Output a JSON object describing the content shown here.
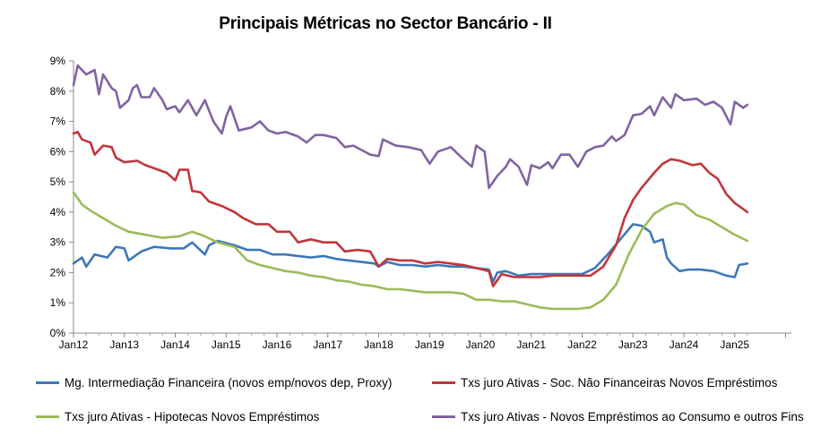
{
  "chart_data": {
    "type": "line",
    "title": "Principais Métricas no Sector Bancário  - II",
    "xlabel": "",
    "ylabel": "",
    "x_tick_labels": [
      "Jan12",
      "Jan13",
      "Jan14",
      "Jan15",
      "Jan16",
      "Jan17",
      "Jan18",
      "Jan19",
      "Jan20",
      "Jan21",
      "Jan22",
      "Jan23",
      "Jan24",
      "Jan25"
    ],
    "y_tick_labels": [
      "0%",
      "1%",
      "2%",
      "3%",
      "4%",
      "5%",
      "6%",
      "7%",
      "8%",
      "9%"
    ],
    "ylim": [
      0,
      9
    ],
    "xlim": [
      "2012-01",
      "2025-04"
    ],
    "grid": false,
    "legend_position": "bottom",
    "series": [
      {
        "name": "Mg. Intermediação Financeira (novos emp/novos dep, Proxy)",
        "color": "#3c78b9",
        "points": [
          [
            "2012-01",
            2.3
          ],
          [
            "2012-03",
            2.5
          ],
          [
            "2012-04",
            2.2
          ],
          [
            "2012-06",
            2.6
          ],
          [
            "2012-09",
            2.5
          ],
          [
            "2012-11",
            2.85
          ],
          [
            "2013-01",
            2.8
          ],
          [
            "2013-02",
            2.4
          ],
          [
            "2013-05",
            2.7
          ],
          [
            "2013-08",
            2.85
          ],
          [
            "2013-12",
            2.8
          ],
          [
            "2014-03",
            2.8
          ],
          [
            "2014-05",
            3.0
          ],
          [
            "2014-08",
            2.6
          ],
          [
            "2014-09",
            2.9
          ],
          [
            "2014-11",
            3.05
          ],
          [
            "2015-03",
            2.9
          ],
          [
            "2015-06",
            2.75
          ],
          [
            "2015-09",
            2.75
          ],
          [
            "2015-12",
            2.6
          ],
          [
            "2016-03",
            2.6
          ],
          [
            "2016-06",
            2.55
          ],
          [
            "2016-09",
            2.5
          ],
          [
            "2016-12",
            2.55
          ],
          [
            "2017-03",
            2.45
          ],
          [
            "2017-06",
            2.4
          ],
          [
            "2017-09",
            2.35
          ],
          [
            "2017-12",
            2.3
          ],
          [
            "2018-01",
            2.2
          ],
          [
            "2018-03",
            2.35
          ],
          [
            "2018-06",
            2.25
          ],
          [
            "2018-09",
            2.25
          ],
          [
            "2018-12",
            2.2
          ],
          [
            "2019-03",
            2.25
          ],
          [
            "2019-06",
            2.2
          ],
          [
            "2019-09",
            2.2
          ],
          [
            "2019-12",
            2.15
          ],
          [
            "2020-03",
            2.1
          ],
          [
            "2020-04",
            1.7
          ],
          [
            "2020-05",
            2.0
          ],
          [
            "2020-07",
            2.05
          ],
          [
            "2020-10",
            1.9
          ],
          [
            "2021-01",
            1.95
          ],
          [
            "2021-04",
            1.95
          ],
          [
            "2021-07",
            1.95
          ],
          [
            "2021-10",
            1.95
          ],
          [
            "2022-01",
            1.95
          ],
          [
            "2022-04",
            2.15
          ],
          [
            "2022-07",
            2.6
          ],
          [
            "2022-10",
            3.1
          ],
          [
            "2023-01",
            3.6
          ],
          [
            "2023-03",
            3.55
          ],
          [
            "2023-05",
            3.35
          ],
          [
            "2023-06",
            3.0
          ],
          [
            "2023-08",
            3.1
          ],
          [
            "2023-09",
            2.5
          ],
          [
            "2023-10",
            2.3
          ],
          [
            "2023-12",
            2.05
          ],
          [
            "2024-02",
            2.1
          ],
          [
            "2024-05",
            2.1
          ],
          [
            "2024-08",
            2.05
          ],
          [
            "2024-11",
            1.9
          ],
          [
            "2025-01",
            1.85
          ],
          [
            "2025-02",
            2.25
          ],
          [
            "2025-04",
            2.3
          ]
        ]
      },
      {
        "name": "Txs juro Ativas - Soc. Não Financeiras Novos Empréstimos",
        "color": "#c0363b",
        "points": [
          [
            "2012-01",
            6.6
          ],
          [
            "2012-02",
            6.65
          ],
          [
            "2012-03",
            6.4
          ],
          [
            "2012-05",
            6.3
          ],
          [
            "2012-06",
            5.9
          ],
          [
            "2012-08",
            6.2
          ],
          [
            "2012-10",
            6.15
          ],
          [
            "2012-11",
            5.8
          ],
          [
            "2013-01",
            5.65
          ],
          [
            "2013-04",
            5.7
          ],
          [
            "2013-06",
            5.55
          ],
          [
            "2013-08",
            5.45
          ],
          [
            "2013-11",
            5.3
          ],
          [
            "2014-01",
            5.05
          ],
          [
            "2014-02",
            5.4
          ],
          [
            "2014-04",
            5.4
          ],
          [
            "2014-05",
            4.7
          ],
          [
            "2014-07",
            4.65
          ],
          [
            "2014-09",
            4.35
          ],
          [
            "2014-12",
            4.2
          ],
          [
            "2015-03",
            4.0
          ],
          [
            "2015-05",
            3.8
          ],
          [
            "2015-08",
            3.6
          ],
          [
            "2015-11",
            3.6
          ],
          [
            "2016-01",
            3.35
          ],
          [
            "2016-04",
            3.35
          ],
          [
            "2016-06",
            3.0
          ],
          [
            "2016-09",
            3.1
          ],
          [
            "2016-12",
            3.0
          ],
          [
            "2017-03",
            3.0
          ],
          [
            "2017-05",
            2.7
          ],
          [
            "2017-08",
            2.75
          ],
          [
            "2017-11",
            2.7
          ],
          [
            "2018-01",
            2.2
          ],
          [
            "2018-03",
            2.45
          ],
          [
            "2018-06",
            2.4
          ],
          [
            "2018-09",
            2.4
          ],
          [
            "2018-12",
            2.3
          ],
          [
            "2019-03",
            2.35
          ],
          [
            "2019-06",
            2.3
          ],
          [
            "2019-09",
            2.25
          ],
          [
            "2019-12",
            2.15
          ],
          [
            "2020-03",
            2.05
          ],
          [
            "2020-04",
            1.55
          ],
          [
            "2020-06",
            1.95
          ],
          [
            "2020-09",
            1.85
          ],
          [
            "2020-12",
            1.85
          ],
          [
            "2021-03",
            1.85
          ],
          [
            "2021-06",
            1.9
          ],
          [
            "2021-09",
            1.9
          ],
          [
            "2021-12",
            1.9
          ],
          [
            "2022-03",
            1.9
          ],
          [
            "2022-06",
            2.2
          ],
          [
            "2022-09",
            2.9
          ],
          [
            "2022-11",
            3.8
          ],
          [
            "2023-01",
            4.4
          ],
          [
            "2023-03",
            4.8
          ],
          [
            "2023-06",
            5.3
          ],
          [
            "2023-08",
            5.6
          ],
          [
            "2023-10",
            5.75
          ],
          [
            "2023-12",
            5.7
          ],
          [
            "2024-03",
            5.55
          ],
          [
            "2024-05",
            5.6
          ],
          [
            "2024-07",
            5.3
          ],
          [
            "2024-09",
            5.1
          ],
          [
            "2024-11",
            4.6
          ],
          [
            "2025-01",
            4.3
          ],
          [
            "2025-03",
            4.1
          ],
          [
            "2025-04",
            4.0
          ]
        ]
      },
      {
        "name": "Txs juro Ativas - Hipotecas Novos Empréstimos",
        "color": "#9bbb59",
        "points": [
          [
            "2012-01",
            4.65
          ],
          [
            "2012-03",
            4.25
          ],
          [
            "2012-05",
            4.05
          ],
          [
            "2012-08",
            3.8
          ],
          [
            "2012-11",
            3.55
          ],
          [
            "2013-02",
            3.35
          ],
          [
            "2013-06",
            3.25
          ],
          [
            "2013-10",
            3.15
          ],
          [
            "2014-02",
            3.2
          ],
          [
            "2014-05",
            3.35
          ],
          [
            "2014-08",
            3.2
          ],
          [
            "2014-11",
            3.0
          ],
          [
            "2015-03",
            2.85
          ],
          [
            "2015-06",
            2.4
          ],
          [
            "2015-09",
            2.25
          ],
          [
            "2015-12",
            2.15
          ],
          [
            "2016-03",
            2.05
          ],
          [
            "2016-06",
            2.0
          ],
          [
            "2016-09",
            1.9
          ],
          [
            "2016-12",
            1.85
          ],
          [
            "2017-03",
            1.75
          ],
          [
            "2017-06",
            1.7
          ],
          [
            "2017-09",
            1.6
          ],
          [
            "2017-12",
            1.55
          ],
          [
            "2018-03",
            1.45
          ],
          [
            "2018-06",
            1.45
          ],
          [
            "2018-09",
            1.4
          ],
          [
            "2018-12",
            1.35
          ],
          [
            "2019-03",
            1.35
          ],
          [
            "2019-06",
            1.35
          ],
          [
            "2019-09",
            1.3
          ],
          [
            "2019-12",
            1.1
          ],
          [
            "2020-03",
            1.1
          ],
          [
            "2020-06",
            1.05
          ],
          [
            "2020-09",
            1.05
          ],
          [
            "2020-12",
            0.95
          ],
          [
            "2021-03",
            0.85
          ],
          [
            "2021-06",
            0.8
          ],
          [
            "2021-09",
            0.8
          ],
          [
            "2021-12",
            0.8
          ],
          [
            "2022-03",
            0.85
          ],
          [
            "2022-06",
            1.1
          ],
          [
            "2022-09",
            1.6
          ],
          [
            "2022-12",
            2.6
          ],
          [
            "2023-03",
            3.4
          ],
          [
            "2023-06",
            3.95
          ],
          [
            "2023-09",
            4.2
          ],
          [
            "2023-11",
            4.3
          ],
          [
            "2024-01",
            4.25
          ],
          [
            "2024-04",
            3.9
          ],
          [
            "2024-07",
            3.75
          ],
          [
            "2024-10",
            3.5
          ],
          [
            "2025-01",
            3.25
          ],
          [
            "2025-04",
            3.05
          ]
        ]
      },
      {
        "name": "Txs juro Ativas - Novos Empréstimos ao Consumo e outros Fins",
        "color": "#8064a2",
        "points": [
          [
            "2012-01",
            8.2
          ],
          [
            "2012-02",
            8.85
          ],
          [
            "2012-04",
            8.55
          ],
          [
            "2012-06",
            8.7
          ],
          [
            "2012-07",
            7.9
          ],
          [
            "2012-08",
            8.55
          ],
          [
            "2012-10",
            8.1
          ],
          [
            "2012-11",
            8.0
          ],
          [
            "2012-12",
            7.45
          ],
          [
            "2013-02",
            7.7
          ],
          [
            "2013-03",
            8.1
          ],
          [
            "2013-04",
            8.2
          ],
          [
            "2013-05",
            7.8
          ],
          [
            "2013-07",
            7.8
          ],
          [
            "2013-08",
            8.1
          ],
          [
            "2013-10",
            7.7
          ],
          [
            "2013-11",
            7.4
          ],
          [
            "2014-01",
            7.5
          ],
          [
            "2014-02",
            7.3
          ],
          [
            "2014-04",
            7.7
          ],
          [
            "2014-06",
            7.2
          ],
          [
            "2014-08",
            7.7
          ],
          [
            "2014-10",
            7.0
          ],
          [
            "2014-12",
            6.6
          ],
          [
            "2015-01",
            7.15
          ],
          [
            "2015-02",
            7.5
          ],
          [
            "2015-04",
            6.7
          ],
          [
            "2015-07",
            6.8
          ],
          [
            "2015-09",
            7.0
          ],
          [
            "2015-11",
            6.7
          ],
          [
            "2016-01",
            6.6
          ],
          [
            "2016-03",
            6.65
          ],
          [
            "2016-06",
            6.5
          ],
          [
            "2016-08",
            6.3
          ],
          [
            "2016-10",
            6.55
          ],
          [
            "2016-12",
            6.55
          ],
          [
            "2017-03",
            6.45
          ],
          [
            "2017-05",
            6.15
          ],
          [
            "2017-07",
            6.2
          ],
          [
            "2017-09",
            6.05
          ],
          [
            "2017-11",
            5.9
          ],
          [
            "2018-01",
            5.85
          ],
          [
            "2018-02",
            6.4
          ],
          [
            "2018-05",
            6.2
          ],
          [
            "2018-08",
            6.15
          ],
          [
            "2018-11",
            6.05
          ],
          [
            "2019-01",
            5.6
          ],
          [
            "2019-03",
            6.0
          ],
          [
            "2019-06",
            6.15
          ],
          [
            "2019-09",
            5.75
          ],
          [
            "2019-11",
            5.5
          ],
          [
            "2019-12",
            6.2
          ],
          [
            "2020-02",
            6.0
          ],
          [
            "2020-03",
            4.8
          ],
          [
            "2020-05",
            5.2
          ],
          [
            "2020-07",
            5.5
          ],
          [
            "2020-08",
            5.75
          ],
          [
            "2020-10",
            5.5
          ],
          [
            "2020-12",
            4.9
          ],
          [
            "2021-01",
            5.55
          ],
          [
            "2021-03",
            5.45
          ],
          [
            "2021-05",
            5.65
          ],
          [
            "2021-06",
            5.45
          ],
          [
            "2021-08",
            5.9
          ],
          [
            "2021-10",
            5.9
          ],
          [
            "2021-12",
            5.5
          ],
          [
            "2022-02",
            6.0
          ],
          [
            "2022-04",
            6.15
          ],
          [
            "2022-06",
            6.2
          ],
          [
            "2022-08",
            6.5
          ],
          [
            "2022-09",
            6.35
          ],
          [
            "2022-11",
            6.55
          ],
          [
            "2023-01",
            7.2
          ],
          [
            "2023-03",
            7.25
          ],
          [
            "2023-05",
            7.5
          ],
          [
            "2023-06",
            7.2
          ],
          [
            "2023-08",
            7.8
          ],
          [
            "2023-10",
            7.45
          ],
          [
            "2023-11",
            7.9
          ],
          [
            "2024-01",
            7.7
          ],
          [
            "2024-04",
            7.75
          ],
          [
            "2024-06",
            7.55
          ],
          [
            "2024-08",
            7.65
          ],
          [
            "2024-10",
            7.45
          ],
          [
            "2024-12",
            6.9
          ],
          [
            "2025-01",
            7.65
          ],
          [
            "2025-03",
            7.45
          ],
          [
            "2025-04",
            7.55
          ]
        ]
      }
    ]
  }
}
